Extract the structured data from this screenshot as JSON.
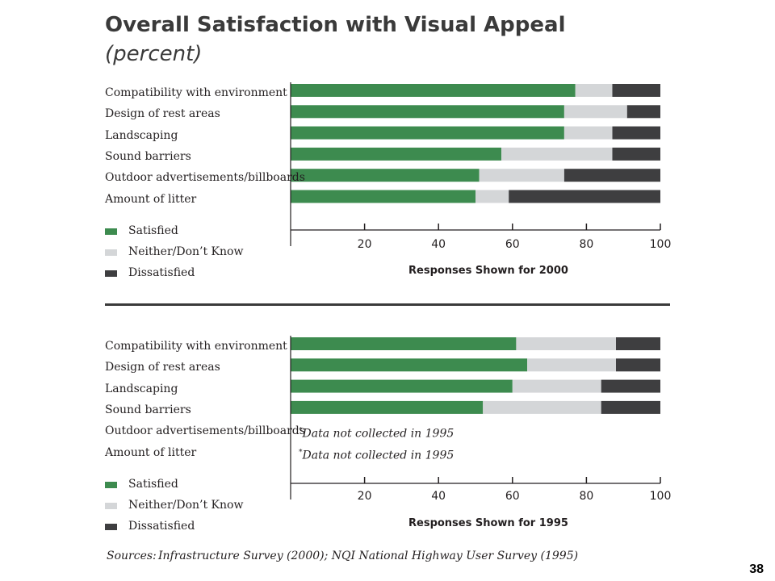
{
  "title": "Overall Satisfaction with Visual Appeal",
  "subtitle": "(percent)",
  "legend": [
    {
      "label": "Satisfied",
      "color": "#3d8b4f"
    },
    {
      "label": "Neither/Don’t Know",
      "color": "#d4d6d8"
    },
    {
      "label": "Dissatisfied",
      "color": "#3e3e40"
    }
  ],
  "chart_data": [
    {
      "type": "bar",
      "orientation": "horizontal",
      "stacked": true,
      "xlabel": "Responses Shown for 2000",
      "xlim": [
        0,
        100
      ],
      "xticks": [
        20,
        40,
        60,
        80,
        100
      ],
      "categories": [
        "Compatibility with environment",
        "Design of rest areas",
        "Landscaping",
        "Sound barriers",
        "Outdoor advertisements/billboards",
        "Amount of litter"
      ],
      "series": [
        {
          "name": "Satisfied",
          "values": [
            77,
            74,
            74,
            57,
            51,
            50
          ]
        },
        {
          "name": "Neither/Don’t Know",
          "values": [
            10,
            17,
            13,
            30,
            23,
            9
          ]
        },
        {
          "name": "Dissatisfied",
          "values": [
            13,
            9,
            13,
            13,
            26,
            41
          ]
        }
      ]
    },
    {
      "type": "bar",
      "orientation": "horizontal",
      "stacked": true,
      "xlabel": "Responses Shown for 1995",
      "xlim": [
        0,
        100
      ],
      "xticks": [
        20,
        40,
        60,
        80,
        100
      ],
      "categories": [
        "Compatibility with environment",
        "Design of rest areas",
        "Landscaping",
        "Sound barriers",
        "Outdoor advertisements/billboards",
        "Amount of litter"
      ],
      "series": [
        {
          "name": "Satisfied",
          "values": [
            61,
            64,
            60,
            52,
            null,
            null
          ]
        },
        {
          "name": "Neither/Don’t Know",
          "values": [
            27,
            24,
            24,
            32,
            null,
            null
          ]
        },
        {
          "name": "Dissatisfied",
          "values": [
            12,
            12,
            16,
            16,
            null,
            null
          ]
        }
      ],
      "notes": {
        "marker": "*",
        "text": "Data not collected in 1995"
      }
    }
  ],
  "sources_label": "Sources:",
  "sources_text": "Infrastructure Survey (2000); NQI National Highway User Survey (1995)",
  "page_number": "38"
}
